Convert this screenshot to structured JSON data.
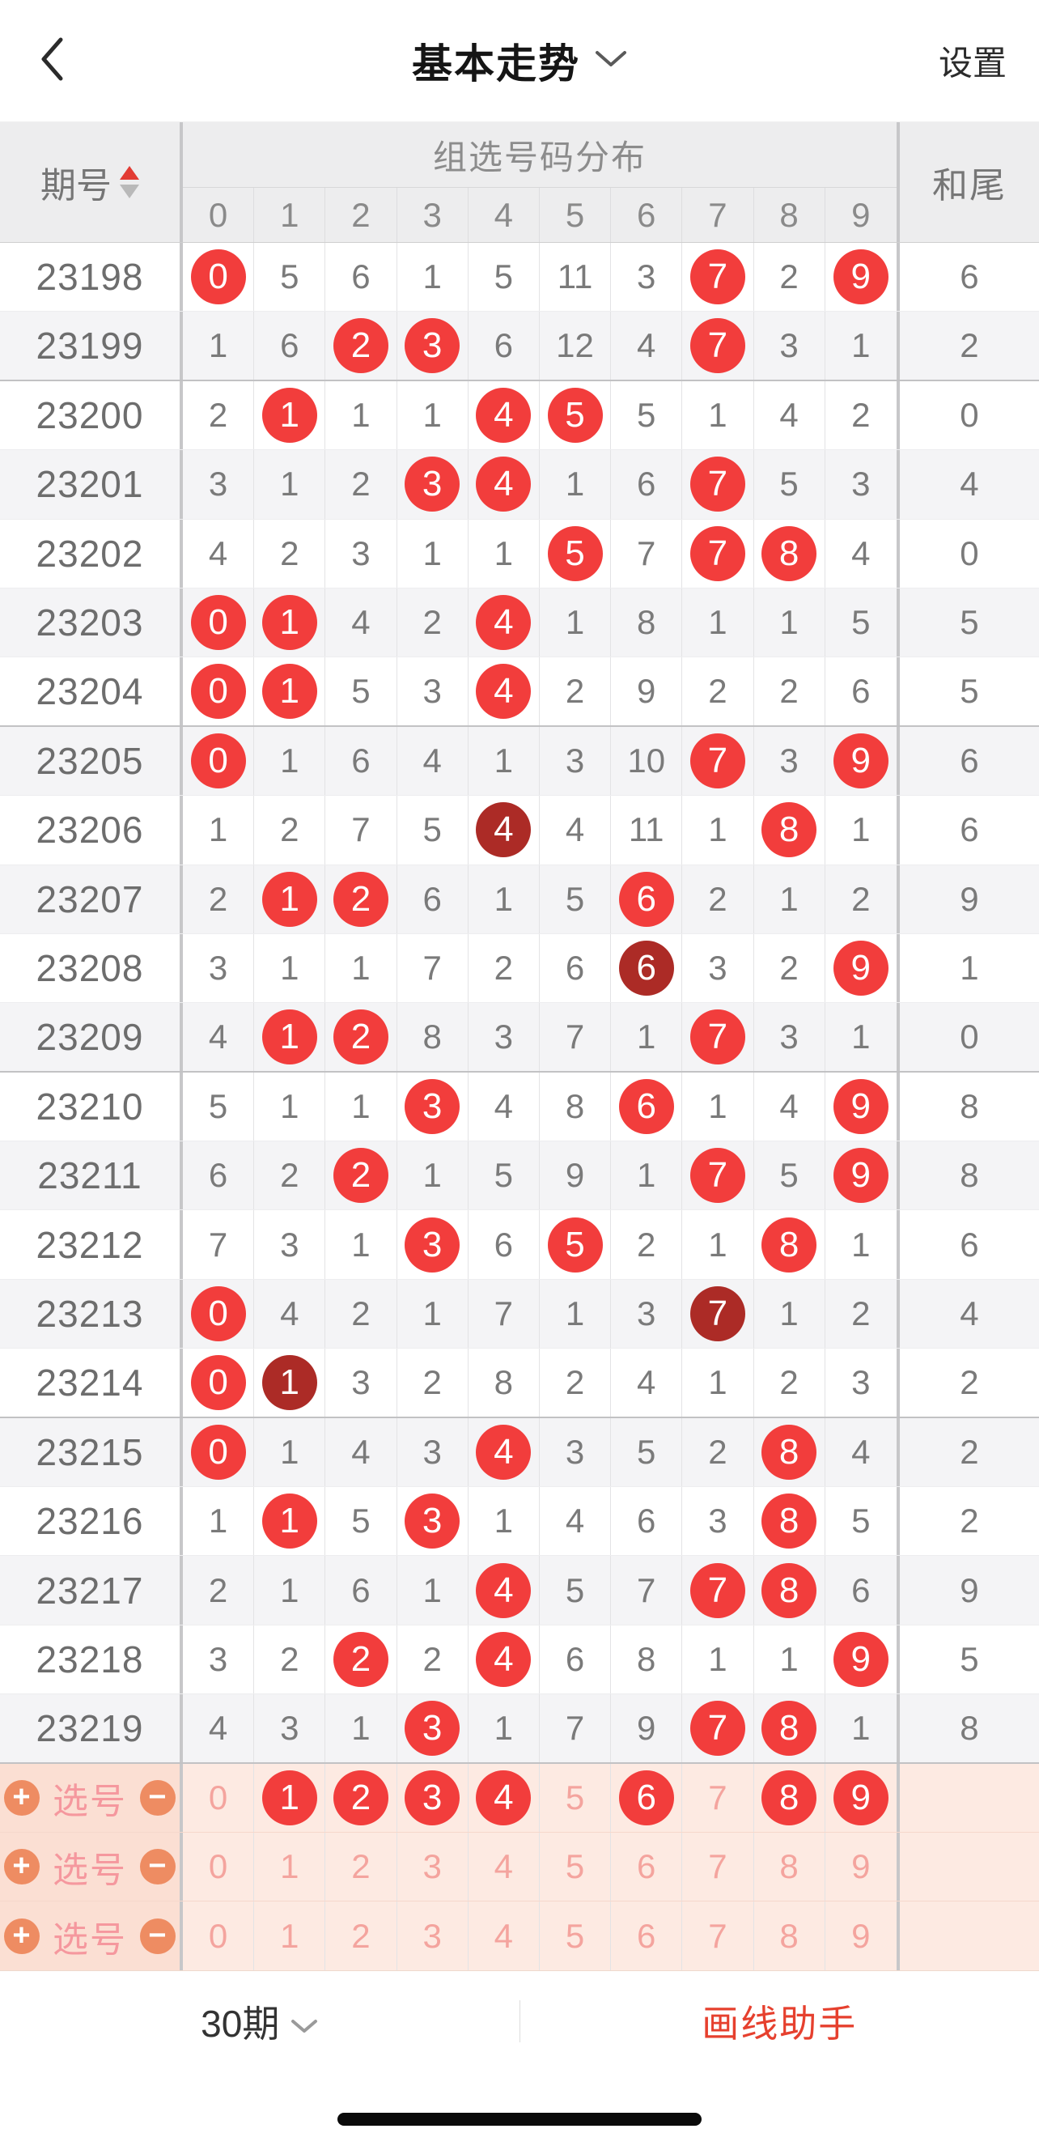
{
  "navbar": {
    "title": "基本走势",
    "settings_label": "设置"
  },
  "icons": {
    "back_chevron": "‹",
    "down_chevron": "∨",
    "plus": "+",
    "minus": "−"
  },
  "table": {
    "header": {
      "period_label": "期号",
      "group_label": "组选号码分布",
      "digit_labels": [
        "0",
        "1",
        "2",
        "3",
        "4",
        "5",
        "6",
        "7",
        "8",
        "9"
      ],
      "sum_tail_label": "和尾"
    },
    "rows": [
      {
        "period": "23198",
        "values": [
          0,
          5,
          6,
          1,
          5,
          11,
          3,
          7,
          2,
          9
        ],
        "red": [
          0,
          7,
          9
        ],
        "dark": [],
        "sum_tail": 6
      },
      {
        "period": "23199",
        "values": [
          1,
          6,
          2,
          3,
          6,
          12,
          4,
          7,
          3,
          1
        ],
        "red": [
          2,
          3,
          7
        ],
        "dark": [],
        "sum_tail": 2
      },
      {
        "period": "23200",
        "values": [
          2,
          1,
          1,
          1,
          4,
          5,
          5,
          1,
          4,
          2
        ],
        "red": [
          1,
          4,
          5
        ],
        "dark": [],
        "sum_tail": 0
      },
      {
        "period": "23201",
        "values": [
          3,
          1,
          2,
          3,
          4,
          1,
          6,
          7,
          5,
          3
        ],
        "red": [
          3,
          4,
          7
        ],
        "dark": [],
        "sum_tail": 4
      },
      {
        "period": "23202",
        "values": [
          4,
          2,
          3,
          1,
          1,
          5,
          7,
          7,
          8,
          4
        ],
        "red": [
          5,
          7,
          8
        ],
        "dark": [],
        "sum_tail": 0
      },
      {
        "period": "23203",
        "values": [
          0,
          1,
          4,
          2,
          4,
          1,
          8,
          1,
          1,
          5
        ],
        "red": [
          0,
          1,
          4
        ],
        "dark": [],
        "sum_tail": 5
      },
      {
        "period": "23204",
        "values": [
          0,
          1,
          5,
          3,
          4,
          2,
          9,
          2,
          2,
          6
        ],
        "red": [
          0,
          1,
          4
        ],
        "dark": [],
        "sum_tail": 5
      },
      {
        "period": "23205",
        "values": [
          0,
          1,
          6,
          4,
          1,
          3,
          10,
          7,
          3,
          9
        ],
        "red": [
          0,
          7,
          9
        ],
        "dark": [],
        "sum_tail": 6
      },
      {
        "period": "23206",
        "values": [
          1,
          2,
          7,
          5,
          4,
          4,
          11,
          1,
          8,
          1
        ],
        "red": [
          8
        ],
        "dark": [
          4
        ],
        "sum_tail": 6
      },
      {
        "period": "23207",
        "values": [
          2,
          1,
          2,
          6,
          1,
          5,
          6,
          2,
          1,
          2
        ],
        "red": [
          1,
          2,
          6
        ],
        "dark": [],
        "sum_tail": 9
      },
      {
        "period": "23208",
        "values": [
          3,
          1,
          1,
          7,
          2,
          6,
          6,
          3,
          2,
          9
        ],
        "red": [
          9
        ],
        "dark": [
          6
        ],
        "sum_tail": 1
      },
      {
        "period": "23209",
        "values": [
          4,
          1,
          2,
          8,
          3,
          7,
          1,
          7,
          3,
          1
        ],
        "red": [
          1,
          2,
          7
        ],
        "dark": [],
        "sum_tail": 0
      },
      {
        "period": "23210",
        "values": [
          5,
          1,
          1,
          3,
          4,
          8,
          6,
          1,
          4,
          9
        ],
        "red": [
          3,
          6,
          9
        ],
        "dark": [],
        "sum_tail": 8
      },
      {
        "period": "23211",
        "values": [
          6,
          2,
          2,
          1,
          5,
          9,
          1,
          7,
          5,
          9
        ],
        "red": [
          2,
          7,
          9
        ],
        "dark": [],
        "sum_tail": 8
      },
      {
        "period": "23212",
        "values": [
          7,
          3,
          1,
          3,
          6,
          5,
          2,
          1,
          8,
          1
        ],
        "red": [
          3,
          5,
          8
        ],
        "dark": [],
        "sum_tail": 6
      },
      {
        "period": "23213",
        "values": [
          0,
          4,
          2,
          1,
          7,
          1,
          3,
          7,
          1,
          2
        ],
        "red": [
          0
        ],
        "dark": [
          7
        ],
        "sum_tail": 4
      },
      {
        "period": "23214",
        "values": [
          0,
          1,
          3,
          2,
          8,
          2,
          4,
          1,
          2,
          3
        ],
        "red": [
          0
        ],
        "dark": [
          1
        ],
        "sum_tail": 2
      },
      {
        "period": "23215",
        "values": [
          0,
          1,
          4,
          3,
          4,
          3,
          5,
          2,
          8,
          4
        ],
        "red": [
          0,
          4,
          8
        ],
        "dark": [],
        "sum_tail": 2
      },
      {
        "period": "23216",
        "values": [
          1,
          1,
          5,
          3,
          1,
          4,
          6,
          3,
          8,
          5
        ],
        "red": [
          1,
          3,
          8
        ],
        "dark": [],
        "sum_tail": 2
      },
      {
        "period": "23217",
        "values": [
          2,
          1,
          6,
          1,
          4,
          5,
          7,
          7,
          8,
          6
        ],
        "red": [
          4,
          7,
          8
        ],
        "dark": [],
        "sum_tail": 9
      },
      {
        "period": "23218",
        "values": [
          3,
          2,
          2,
          2,
          4,
          6,
          8,
          1,
          1,
          9
        ],
        "red": [
          2,
          4,
          9
        ],
        "dark": [],
        "sum_tail": 5
      },
      {
        "period": "23219",
        "values": [
          4,
          3,
          1,
          3,
          1,
          7,
          9,
          7,
          8,
          1
        ],
        "red": [
          3,
          7,
          8
        ],
        "dark": [],
        "sum_tail": 8
      }
    ],
    "group_separators_after": [
      "23199",
      "23204",
      "23209",
      "23214",
      "23219"
    ]
  },
  "selection_rows": [
    {
      "label": "选号",
      "values": [
        0,
        1,
        2,
        3,
        4,
        5,
        6,
        7,
        8,
        9
      ],
      "red": [
        1,
        2,
        3,
        4,
        6,
        8,
        9
      ]
    },
    {
      "label": "选号",
      "values": [
        0,
        1,
        2,
        3,
        4,
        5,
        6,
        7,
        8,
        9
      ],
      "red": []
    },
    {
      "label": "选号",
      "values": [
        0,
        1,
        2,
        3,
        4,
        5,
        6,
        7,
        8,
        9
      ],
      "red": []
    }
  ],
  "footer": {
    "periods_label": "30期",
    "draw_assistant_label": "画线助手"
  },
  "colors": {
    "accent_red": "#f23d3c",
    "dark_red": "#ac2b26",
    "pink_text": "#f4a49e",
    "selection_bg": "#fdeae2",
    "selection_left_bg": "#fbdfd3",
    "button_orange": "#ee8c62",
    "assist_red": "#e6402e"
  }
}
